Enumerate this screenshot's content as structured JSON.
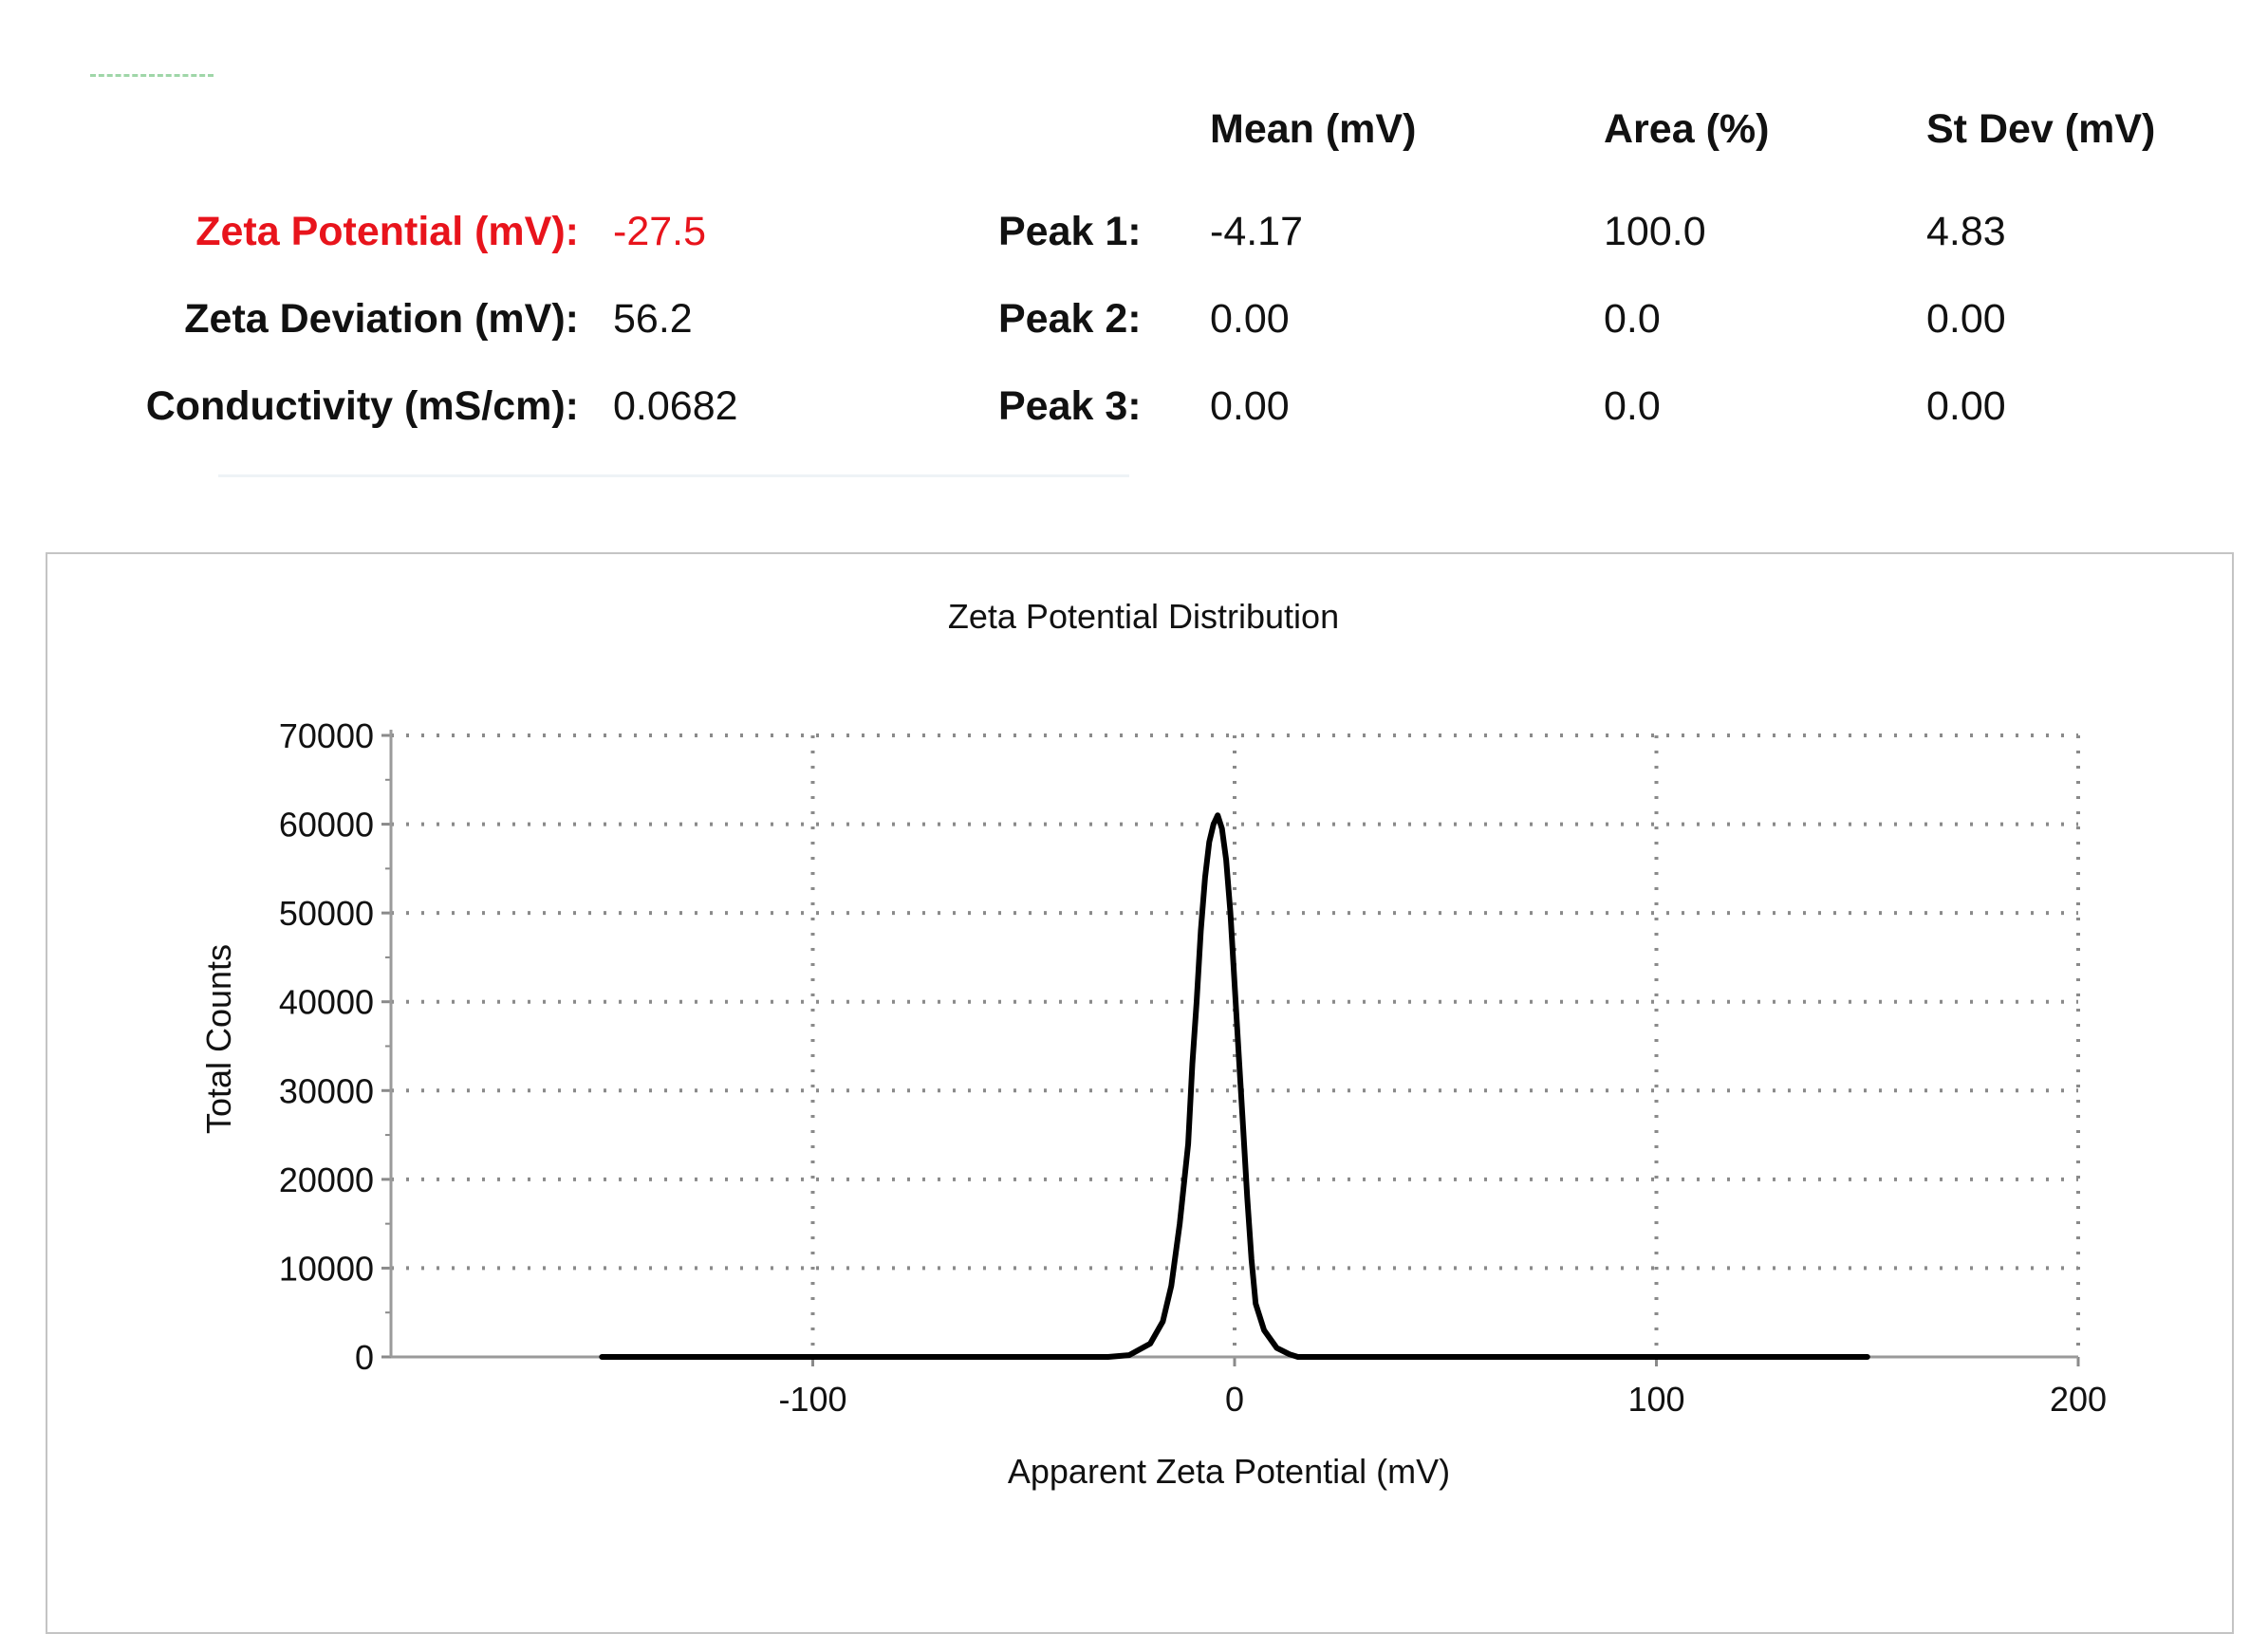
{
  "summary": {
    "rows": [
      {
        "label": "Zeta Potential (mV):",
        "value": "-27.5",
        "highlight": true
      },
      {
        "label": "Zeta Deviation (mV):",
        "value": "56.2",
        "highlight": false
      },
      {
        "label": "Conductivity (mS/cm):",
        "value": "0.0682",
        "highlight": false
      }
    ]
  },
  "peaks": {
    "headers": {
      "mean": "Mean (mV)",
      "area": "Area (%)",
      "stdev": "St Dev (mV)"
    },
    "rows": [
      {
        "label": "Peak 1:",
        "mean": "-4.17",
        "area": "100.0",
        "stdev": "4.83"
      },
      {
        "label": "Peak 2:",
        "mean": "0.00",
        "area": "0.0",
        "stdev": "0.00"
      },
      {
        "label": "Peak 3:",
        "mean": "0.00",
        "area": "0.0",
        "stdev": "0.00"
      }
    ]
  },
  "colors": {
    "highlight": "#e8141c",
    "line": "#000000",
    "grid": "#8a8a8a"
  },
  "chart_data": {
    "type": "line",
    "title": "Zeta Potential Distribution",
    "xlabel": "Apparent Zeta Potential (mV)",
    "ylabel": "Total Counts",
    "xlim": [
      -200,
      200
    ],
    "ylim": [
      0,
      70000
    ],
    "x_ticks": [
      -100,
      0,
      100,
      200
    ],
    "y_ticks": [
      0,
      10000,
      20000,
      30000,
      40000,
      50000,
      60000,
      70000
    ],
    "grid": true,
    "legend": "none",
    "series": [
      {
        "x": [
          -150,
          -50,
          -30,
          -25,
          -20,
          -17,
          -15,
          -13,
          -11,
          -10,
          -9,
          -8,
          -7,
          -6,
          -5,
          -4,
          -3,
          -2,
          -1,
          0,
          1,
          2,
          3,
          4,
          5,
          7,
          10,
          13,
          15,
          20,
          50,
          150
        ],
        "y": [
          0,
          0,
          0,
          200,
          1500,
          4000,
          8000,
          15000,
          24000,
          33000,
          40000,
          48000,
          54000,
          58000,
          60000,
          61000,
          59500,
          56000,
          50000,
          42000,
          34000,
          26000,
          18000,
          11000,
          6000,
          3000,
          1000,
          300,
          0,
          0,
          0,
          0
        ]
      }
    ]
  }
}
